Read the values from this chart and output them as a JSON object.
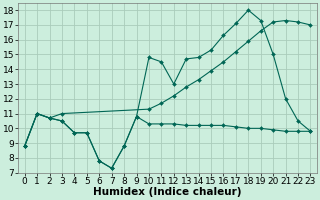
{
  "title": "",
  "xlabel": "Humidex (Indice chaleur)",
  "ylabel": "",
  "bg_color": "#cceedd",
  "grid_color": "#aaccbb",
  "line_color": "#006655",
  "line1": {
    "x": [
      0,
      1,
      2,
      3,
      4,
      5,
      6,
      7,
      8,
      9,
      10,
      11,
      12,
      13,
      14,
      15,
      16,
      17,
      18,
      19,
      20,
      21,
      22,
      23
    ],
    "y": [
      8.8,
      11.0,
      10.7,
      10.5,
      9.7,
      9.7,
      7.8,
      7.3,
      8.8,
      10.8,
      10.3,
      10.3,
      10.3,
      10.2,
      10.2,
      10.2,
      10.2,
      10.1,
      10.0,
      10.0,
      9.9,
      9.8,
      9.8,
      9.8
    ]
  },
  "line2": {
    "x": [
      0,
      1,
      2,
      3,
      4,
      5,
      6,
      7,
      8,
      9,
      10,
      11,
      12,
      13,
      14,
      15,
      16,
      17,
      18,
      19,
      20,
      21,
      22,
      23
    ],
    "y": [
      8.8,
      11.0,
      10.7,
      10.5,
      9.7,
      9.7,
      7.8,
      7.3,
      8.8,
      10.8,
      14.8,
      14.5,
      13.0,
      14.7,
      14.8,
      15.3,
      16.3,
      17.1,
      18.0,
      17.3,
      15.0,
      12.0,
      10.5,
      9.8
    ]
  },
  "line3": {
    "x": [
      0,
      1,
      2,
      3,
      10,
      11,
      12,
      13,
      14,
      15,
      16,
      17,
      18,
      19,
      20,
      21,
      22,
      23
    ],
    "y": [
      8.8,
      11.0,
      10.7,
      11.0,
      11.3,
      11.7,
      12.2,
      12.8,
      13.3,
      13.9,
      14.5,
      15.2,
      15.9,
      16.6,
      17.2,
      17.3,
      17.2,
      17.0
    ]
  },
  "ylim": [
    7,
    18.5
  ],
  "xlim": [
    -0.5,
    23.5
  ],
  "yticks": [
    7,
    8,
    9,
    10,
    11,
    12,
    13,
    14,
    15,
    16,
    17,
    18
  ],
  "xticks": [
    0,
    1,
    2,
    3,
    4,
    5,
    6,
    7,
    8,
    9,
    10,
    11,
    12,
    13,
    14,
    15,
    16,
    17,
    18,
    19,
    20,
    21,
    22,
    23
  ],
  "fontsize": 6.5,
  "xlabel_fontsize": 7.5
}
